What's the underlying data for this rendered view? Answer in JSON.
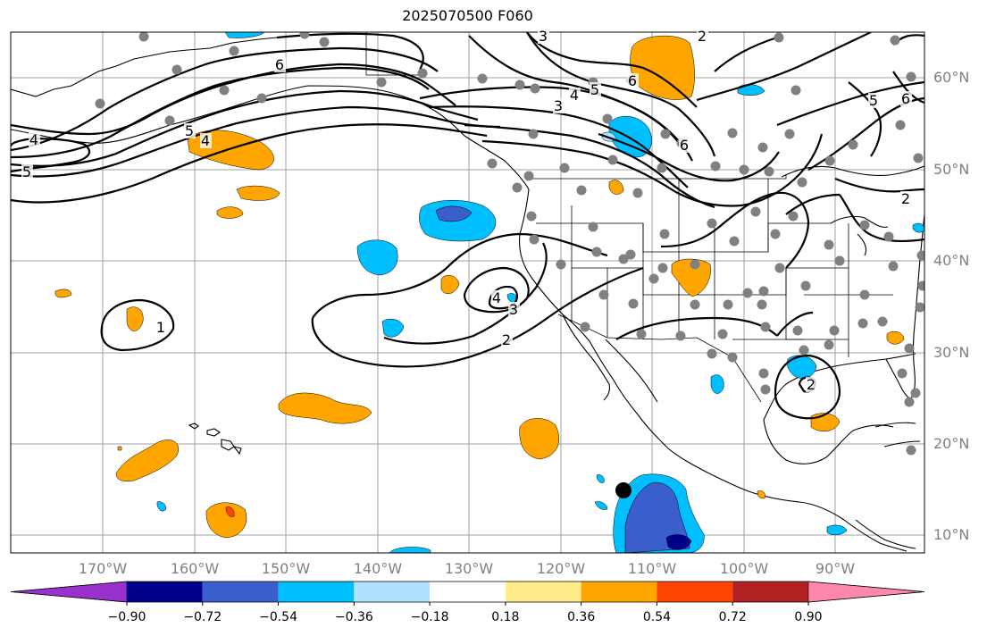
{
  "title": "2025070500 F060",
  "lat_labels": [
    "60°N",
    "50°N",
    "40°N",
    "30°N",
    "20°N",
    "10°N"
  ],
  "lon_labels": [
    "170°W",
    "160°W",
    "150°W",
    "140°W",
    "130°W",
    "120°W",
    "110°W",
    "100°W",
    "90°W"
  ],
  "colorbar": {
    "colors": [
      "#9932cc",
      "#00008b",
      "#3a5fcd",
      "#00bfff",
      "#b0e2ff",
      "#ffffff",
      "#ffec8b",
      "#ffa500",
      "#ff4500",
      "#b22222",
      "#ff88aa"
    ],
    "tick_labels": [
      "−0.90",
      "−0.72",
      "−0.54",
      "−0.36",
      "−0.18",
      "0.18",
      "0.36",
      "0.54",
      "0.72",
      "0.90"
    ]
  },
  "contour_labels": [
    "3",
    "2",
    "6",
    "5",
    "4",
    "3",
    "6",
    "6",
    "4",
    "5",
    "5",
    "4",
    "2",
    "4",
    "3",
    "2",
    "1",
    "2",
    "5",
    "6"
  ],
  "marker": {
    "color": "#000000"
  },
  "stations_color": "#808080"
}
